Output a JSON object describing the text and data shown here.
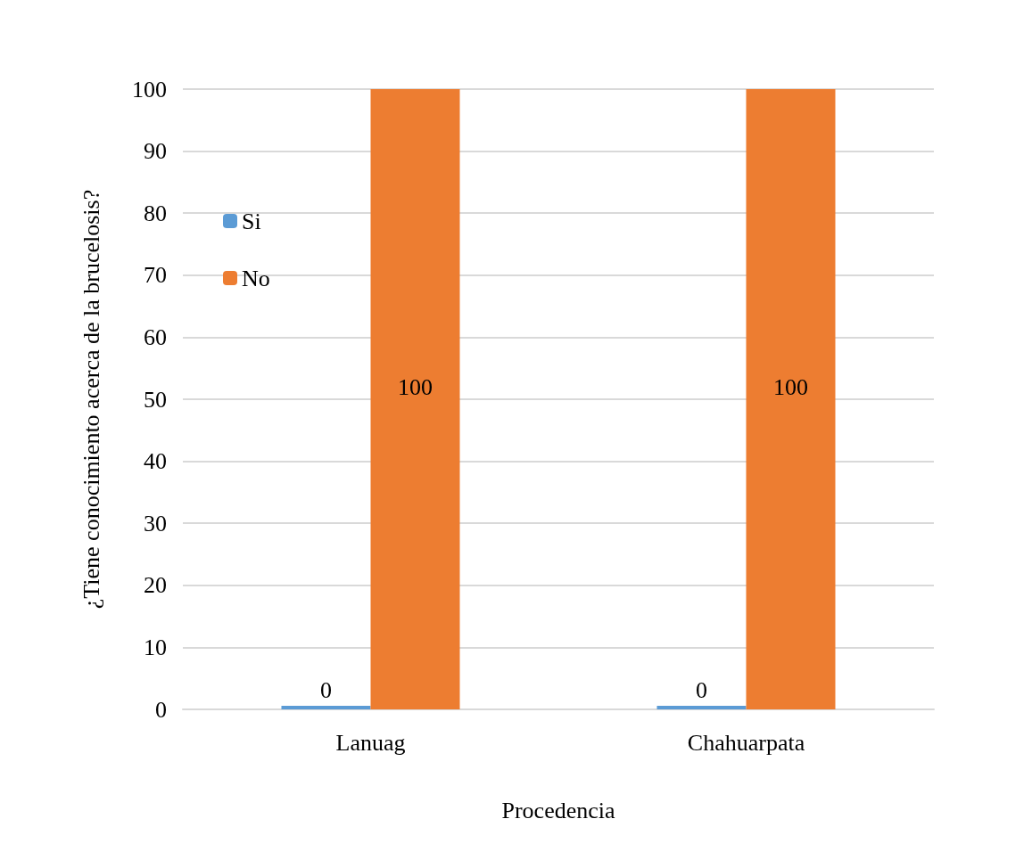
{
  "chart_data": {
    "type": "bar",
    "ylabel": "¿Tiene conocimiento acerca de la brucelosis?",
    "xlabel": "Procedencia",
    "categories": [
      "Lanuag",
      "Chahuarpata"
    ],
    "series": [
      {
        "name": "Si",
        "color": "#5b9bd5",
        "values": [
          0,
          0
        ]
      },
      {
        "name": "No",
        "color": "#ed7d31",
        "values": [
          100,
          100
        ]
      }
    ],
    "ylim": [
      0,
      100
    ],
    "yticks": [
      0,
      10,
      20,
      30,
      40,
      50,
      60,
      70,
      80,
      90,
      100
    ],
    "grid": "y",
    "legend": "left",
    "data_labels": true
  }
}
